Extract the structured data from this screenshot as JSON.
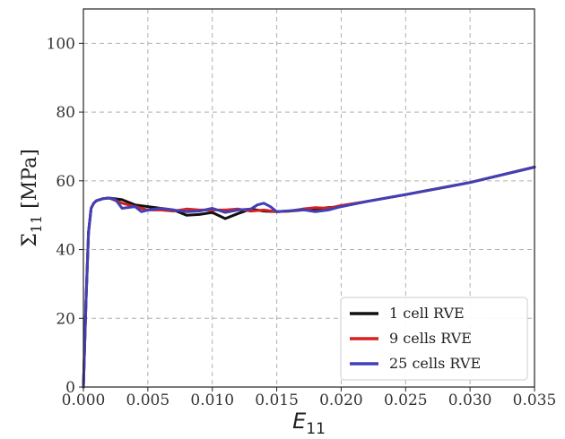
{
  "chart_data": {
    "type": "line",
    "xlabel": {
      "symbol": "E",
      "sub": "11"
    },
    "ylabel": {
      "symbol": "Σ",
      "sub": "11",
      "unit": " [MPa]"
    },
    "xlim": [
      0,
      0.035
    ],
    "ylim": [
      0,
      110
    ],
    "x_ticks": [
      "0.000",
      "0.005",
      "0.010",
      "0.015",
      "0.020",
      "0.025",
      "0.030",
      "0.035"
    ],
    "y_ticks": [
      "0",
      "20",
      "40",
      "60",
      "80",
      "100"
    ],
    "grid": true,
    "legend_position": "lower-right",
    "series": [
      {
        "name": "1 cell RVE",
        "color": "#111111",
        "x": [
          0,
          0.0002,
          0.0004,
          0.0006,
          0.0008,
          0.001,
          0.0015,
          0.002,
          0.003,
          0.004,
          0.005,
          0.006,
          0.007,
          0.008,
          0.009,
          0.01,
          0.011,
          0.012,
          0.013,
          0.014,
          0.015,
          0.016,
          0.017,
          0.018,
          0.019,
          0.02,
          0.022,
          0.025,
          0.03,
          0.035
        ],
        "y": [
          0,
          25,
          45,
          52,
          53.5,
          54.2,
          54.8,
          55,
          54.5,
          53,
          52.5,
          52,
          51.5,
          50,
          50.2,
          50.8,
          49,
          50.5,
          51.8,
          51.2,
          51,
          51.2,
          51.5,
          51.8,
          52.2,
          52.5,
          54,
          56,
          59.5,
          64
        ]
      },
      {
        "name": "9 cells RVE",
        "color": "#d62020",
        "x": [
          0,
          0.0002,
          0.0004,
          0.0006,
          0.0008,
          0.001,
          0.0015,
          0.002,
          0.003,
          0.004,
          0.005,
          0.006,
          0.007,
          0.008,
          0.009,
          0.01,
          0.011,
          0.012,
          0.013,
          0.014,
          0.015,
          0.016,
          0.017,
          0.018,
          0.019,
          0.02,
          0.022,
          0.025,
          0.03,
          0.035
        ],
        "y": [
          0,
          25,
          45,
          52,
          53.5,
          54.2,
          54.8,
          55,
          53.5,
          52.5,
          51.5,
          51.5,
          51.2,
          51.8,
          51.5,
          51.5,
          51.5,
          51.8,
          51.2,
          51.5,
          51,
          51.2,
          51.8,
          52.2,
          52,
          52.8,
          54,
          56,
          59.5,
          64
        ]
      },
      {
        "name": "25 cells RVE",
        "color": "#4040b8",
        "x": [
          0,
          0.0002,
          0.0004,
          0.0006,
          0.0008,
          0.001,
          0.0015,
          0.002,
          0.0025,
          0.003,
          0.004,
          0.0045,
          0.005,
          0.006,
          0.007,
          0.008,
          0.009,
          0.01,
          0.011,
          0.012,
          0.013,
          0.0135,
          0.014,
          0.0145,
          0.015,
          0.016,
          0.017,
          0.018,
          0.019,
          0.02,
          0.022,
          0.025,
          0.03,
          0.035
        ],
        "y": [
          0,
          25,
          45,
          52,
          53.5,
          54.2,
          54.8,
          55,
          54.5,
          52,
          52.5,
          51,
          51.5,
          52,
          51.5,
          51,
          51.2,
          52,
          50.8,
          51.5,
          51.8,
          53,
          53.5,
          52.5,
          51,
          51.3,
          51.6,
          51,
          51.5,
          52.5,
          54,
          56,
          59.5,
          64
        ]
      }
    ]
  }
}
